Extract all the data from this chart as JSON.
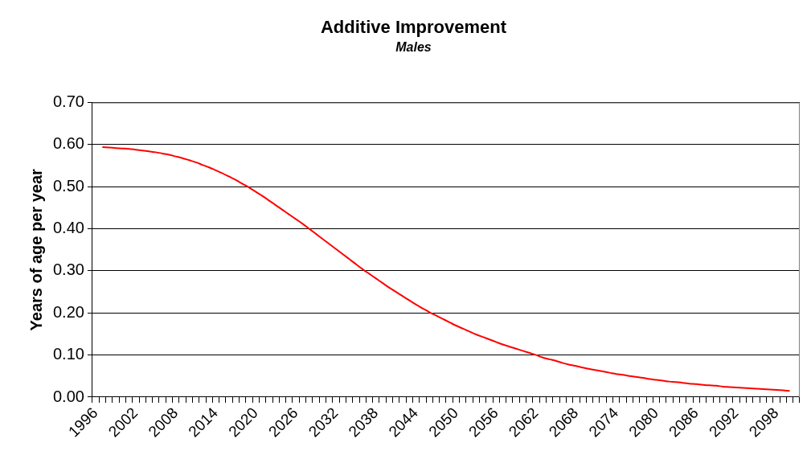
{
  "chart_data": {
    "type": "line",
    "title": "Additive Improvement",
    "subtitle": "Males",
    "ylabel": "Years of age per year",
    "categories": [
      "1996",
      null,
      null,
      null,
      null,
      null,
      "2002",
      null,
      null,
      null,
      null,
      null,
      "2008",
      null,
      null,
      null,
      null,
      null,
      "2014",
      null,
      null,
      null,
      null,
      null,
      "2020",
      null,
      null,
      null,
      null,
      null,
      "2026",
      null,
      null,
      null,
      null,
      null,
      "2032",
      null,
      null,
      null,
      null,
      null,
      "2038",
      null,
      null,
      null,
      null,
      null,
      "2044",
      null,
      null,
      null,
      null,
      null,
      "2050",
      null,
      null,
      null,
      null,
      null,
      "2056",
      null,
      null,
      null,
      null,
      null,
      "2062",
      null,
      null,
      null,
      null,
      null,
      "2068",
      null,
      null,
      null,
      null,
      null,
      "2074",
      null,
      null,
      null,
      null,
      null,
      "2080",
      null,
      null,
      null,
      null,
      null,
      "2086",
      null,
      null,
      null,
      null,
      null,
      "2092",
      null,
      null,
      null,
      null,
      null,
      "2098",
      null,
      null,
      null
    ],
    "color": "#ff0000",
    "values": [
      null,
      0.594,
      0.593,
      0.592,
      0.591,
      0.59,
      0.588,
      0.586,
      0.584,
      0.582,
      0.579,
      0.576,
      0.572,
      0.568,
      0.563,
      0.558,
      0.552,
      0.546,
      0.539,
      0.532,
      0.524,
      0.516,
      0.507,
      0.498,
      0.488,
      0.478,
      0.467,
      0.456,
      0.445,
      0.434,
      0.423,
      0.412,
      0.4,
      0.388,
      0.376,
      0.364,
      0.352,
      0.34,
      0.328,
      0.316,
      0.304,
      0.293,
      0.282,
      0.271,
      0.26,
      0.25,
      0.24,
      0.23,
      0.22,
      0.211,
      0.202,
      0.194,
      0.186,
      0.178,
      0.17,
      0.163,
      0.156,
      0.149,
      0.143,
      0.137,
      0.131,
      0.125,
      0.12,
      0.115,
      0.11,
      0.105,
      0.1,
      0.094,
      0.09,
      0.086,
      0.081,
      0.077,
      0.074,
      0.07,
      0.067,
      0.064,
      0.061,
      0.058,
      0.055,
      0.053,
      0.05,
      0.048,
      0.046,
      0.043,
      0.041,
      0.039,
      0.037,
      0.036,
      0.034,
      0.032,
      0.031,
      0.029,
      0.028,
      0.027,
      0.025,
      0.024,
      0.023,
      0.022,
      0.021,
      0.02,
      0.019,
      0.018,
      0.017,
      0.016,
      0.015,
      null
    ],
    "ylim": [
      0,
      0.7
    ],
    "yticks": [
      {
        "value": 0,
        "label": "0.00"
      },
      {
        "value": 0.1,
        "label": "0.10"
      },
      {
        "value": 0.2,
        "label": "0.20"
      },
      {
        "value": 0.3,
        "label": "0.30"
      },
      {
        "value": 0.4,
        "label": "0.40"
      },
      {
        "value": 0.5,
        "label": "0.50"
      },
      {
        "value": 0.6,
        "label": "0.60"
      },
      {
        "value": 0.7,
        "label": "0.70"
      }
    ],
    "grid": "y",
    "legend": false,
    "marker": "none"
  }
}
